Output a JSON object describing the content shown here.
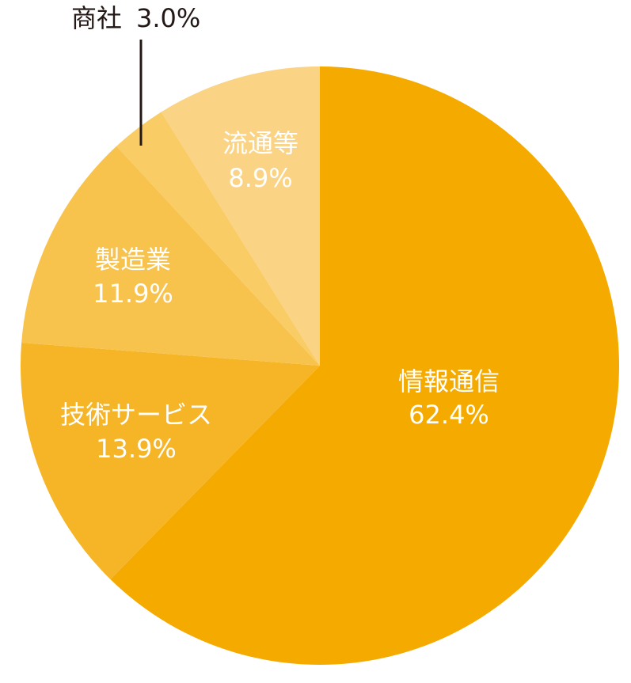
{
  "chart_data": {
    "type": "pie",
    "title": "",
    "slices": [
      {
        "name": "情報通信",
        "value": 62.4,
        "label": "62.4%",
        "color": "#f5aa00"
      },
      {
        "name": "技術サービス",
        "value": 13.9,
        "label": "13.9%",
        "color": "#f6b526"
      },
      {
        "name": "製造業",
        "value": 11.9,
        "label": "11.9%",
        "color": "#f8c34c"
      },
      {
        "name": "商社",
        "value": 3.0,
        "label": "3.0%",
        "color": "#f9cc66"
      },
      {
        "name": "流通等",
        "value": 8.9,
        "label": "8.9%",
        "color": "#fad384"
      }
    ],
    "start": "12 o'clock",
    "direction": "clockwise",
    "legend": "none"
  }
}
